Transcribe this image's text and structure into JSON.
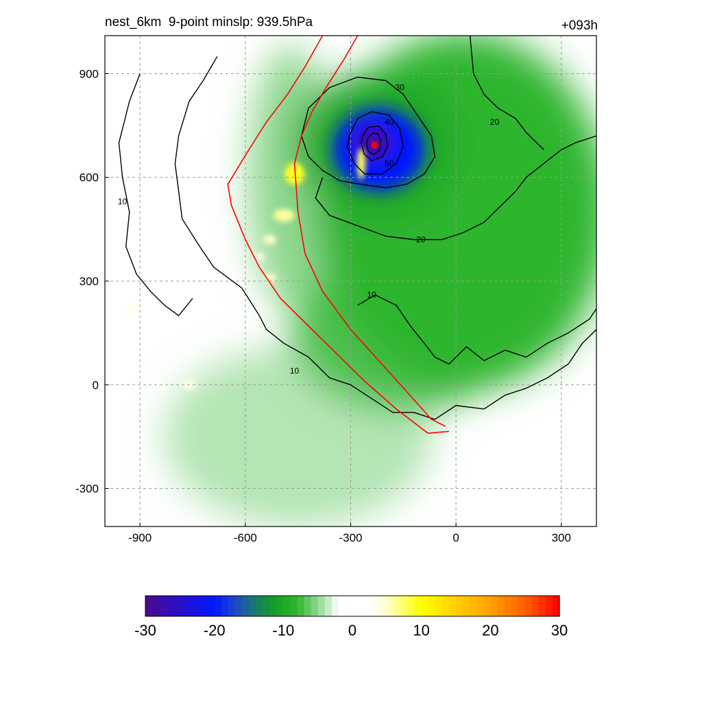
{
  "figure": {
    "title_left": "nest_6km  9-point minslp: 939.5hPa",
    "title_right": "+093h"
  },
  "chart_data": {
    "type": "heatmap",
    "title": "nest_6km  9-point minslp: 939.5hPa",
    "forecast_hour": "+093h",
    "xlim": [
      -1000,
      400
    ],
    "ylim": [
      -410,
      1010
    ],
    "x_ticks": [
      -900,
      -600,
      -300,
      0,
      300
    ],
    "y_ticks": [
      -300,
      0,
      300,
      600,
      900
    ],
    "grid": true,
    "colorbar": {
      "min": -30,
      "max": 30,
      "ticks": [
        -30,
        -20,
        -10,
        0,
        10,
        20,
        30
      ],
      "placement": "bottom",
      "stops": [
        {
          "v": -30,
          "c": "#4b0a8c"
        },
        {
          "v": -25,
          "c": "#2a10c8"
        },
        {
          "v": -20,
          "c": "#0018ff"
        },
        {
          "v": -17,
          "c": "#1f48c8"
        },
        {
          "v": -14,
          "c": "#1a7a6a"
        },
        {
          "v": -11,
          "c": "#15a020"
        },
        {
          "v": -8,
          "c": "#2fb52f"
        },
        {
          "v": -5,
          "c": "#8fd88f"
        },
        {
          "v": -3,
          "c": "#d8f2d8"
        },
        {
          "v": -2,
          "c": "#ffffff"
        },
        {
          "v": 3,
          "c": "#ffffff"
        },
        {
          "v": 5,
          "c": "#ffffc8"
        },
        {
          "v": 10,
          "c": "#ffff00"
        },
        {
          "v": 15,
          "c": "#ffd000"
        },
        {
          "v": 20,
          "c": "#ffa000"
        },
        {
          "v": 25,
          "c": "#ff6000"
        },
        {
          "v": 30,
          "c": "#ff0000"
        }
      ]
    },
    "storm_center": {
      "x": -232,
      "y": 693,
      "color": "#ff0000"
    },
    "field_features": [
      {
        "name": "eyewall",
        "x": -232,
        "y": 693,
        "rx": 230,
        "ry": 210,
        "value": -10
      },
      {
        "name": "inner-core",
        "x": -220,
        "y": 680,
        "rx": 130,
        "ry": 120,
        "value": -20
      },
      {
        "name": "eye-max",
        "x": -235,
        "y": 700,
        "rx": 50,
        "ry": 45,
        "value": -29
      },
      {
        "name": "east-band",
        "x": 20,
        "y": 500,
        "rx": 420,
        "ry": 520,
        "value": -8
      },
      {
        "name": "south-band",
        "x": -150,
        "y": 150,
        "rx": 320,
        "ry": 230,
        "value": -7
      },
      {
        "name": "southwest-sheet",
        "x": -450,
        "y": -150,
        "rx": 380,
        "ry": 260,
        "value": -4
      },
      {
        "name": "west-band",
        "x": -470,
        "y": 600,
        "rx": 120,
        "ry": 380,
        "value": -5
      }
    ],
    "positive_patches": [
      {
        "x": -460,
        "y": 610,
        "rx": 28,
        "ry": 32,
        "value": 9
      },
      {
        "x": -490,
        "y": 490,
        "rx": 30,
        "ry": 18,
        "value": 6
      },
      {
        "x": -530,
        "y": 420,
        "rx": 18,
        "ry": 14,
        "value": 5
      },
      {
        "x": -530,
        "y": 310,
        "rx": 18,
        "ry": 12,
        "value": 5
      },
      {
        "x": -270,
        "y": 640,
        "rx": 12,
        "ry": 45,
        "value": 8
      },
      {
        "x": -920,
        "y": 220,
        "rx": 18,
        "ry": 12,
        "value": 4
      },
      {
        "x": -560,
        "y": 370,
        "rx": 14,
        "ry": 10,
        "value": 4
      },
      {
        "x": -760,
        "y": 0,
        "rx": 20,
        "ry": 14,
        "value": 4
      }
    ],
    "contours": [
      {
        "level": "10",
        "color": "#000000",
        "points": [
          [
            -680,
            950
          ],
          [
            -720,
            880
          ],
          [
            -760,
            820
          ],
          [
            -790,
            720
          ],
          [
            -800,
            640
          ],
          [
            -790,
            560
          ],
          [
            -780,
            480
          ],
          [
            -730,
            400
          ],
          [
            -690,
            340
          ],
          [
            -610,
            280
          ],
          [
            -560,
            200
          ],
          [
            -540,
            160
          ],
          [
            -490,
            120
          ],
          [
            -420,
            80
          ],
          [
            -360,
            20
          ],
          [
            -300,
            0
          ],
          [
            -240,
            -40
          ],
          [
            -180,
            -80
          ],
          [
            -120,
            -80
          ],
          [
            -60,
            -100
          ],
          [
            0,
            -60
          ],
          [
            80,
            -70
          ],
          [
            140,
            -30
          ],
          [
            200,
            -10
          ],
          [
            260,
            20
          ],
          [
            320,
            60
          ],
          [
            360,
            120
          ],
          [
            400,
            160
          ]
        ],
        "label": {
          "text": "10",
          "x": -460,
          "y": 40
        }
      },
      {
        "level": "10",
        "color": "#000000",
        "points": [
          [
            -900,
            900
          ],
          [
            -930,
            820
          ],
          [
            -960,
            700
          ],
          [
            -950,
            600
          ],
          [
            -930,
            500
          ],
          [
            -940,
            400
          ],
          [
            -910,
            320
          ],
          [
            -870,
            270
          ],
          [
            -830,
            230
          ],
          [
            -790,
            200
          ],
          [
            -750,
            250
          ]
        ],
        "label": {
          "text": "10",
          "x": -950,
          "y": 530
        }
      },
      {
        "level": "10",
        "color": "#000000",
        "points": [
          [
            -280,
            230
          ],
          [
            -230,
            260
          ],
          [
            -170,
            230
          ],
          [
            -130,
            170
          ],
          [
            -90,
            120
          ],
          [
            -60,
            80
          ],
          [
            -20,
            60
          ],
          [
            30,
            110
          ],
          [
            80,
            70
          ],
          [
            140,
            100
          ],
          [
            200,
            80
          ],
          [
            260,
            120
          ],
          [
            320,
            150
          ],
          [
            380,
            190
          ],
          [
            400,
            220
          ]
        ],
        "label": {
          "text": "10",
          "x": -240,
          "y": 260
        }
      },
      {
        "level": "20",
        "color": "#000000",
        "points": [
          [
            -380,
            600
          ],
          [
            -400,
            540
          ],
          [
            -360,
            490
          ],
          [
            -280,
            460
          ],
          [
            -200,
            430
          ],
          [
            -120,
            420
          ],
          [
            -40,
            420
          ],
          [
            20,
            440
          ],
          [
            80,
            470
          ],
          [
            130,
            520
          ],
          [
            170,
            560
          ],
          [
            200,
            600
          ],
          [
            250,
            640
          ],
          [
            300,
            680
          ],
          [
            340,
            700
          ],
          [
            400,
            720
          ]
        ],
        "label": {
          "text": "20",
          "x": -100,
          "y": 420
        }
      },
      {
        "level": "20",
        "color": "#000000",
        "points": [
          [
            40,
            1010
          ],
          [
            50,
            900
          ],
          [
            80,
            840
          ],
          [
            120,
            800
          ],
          [
            170,
            770
          ],
          [
            200,
            730
          ],
          [
            230,
            700
          ],
          [
            250,
            680
          ]
        ],
        "label": {
          "text": "20",
          "x": 110,
          "y": 760
        }
      },
      {
        "level": "30",
        "color": "#000000",
        "points": [
          [
            -440,
            720
          ],
          [
            -420,
            800
          ],
          [
            -360,
            860
          ],
          [
            -280,
            890
          ],
          [
            -200,
            880
          ],
          [
            -150,
            840
          ],
          [
            -110,
            780
          ],
          [
            -70,
            720
          ],
          [
            -60,
            660
          ],
          [
            -90,
            610
          ],
          [
            -140,
            580
          ],
          [
            -200,
            570
          ],
          [
            -270,
            580
          ],
          [
            -330,
            590
          ],
          [
            -380,
            620
          ],
          [
            -420,
            660
          ],
          [
            -440,
            720
          ]
        ],
        "label": {
          "text": "30",
          "x": -160,
          "y": 860
        }
      },
      {
        "level": "40",
        "color": "#000000",
        "points": [
          [
            -300,
            730
          ],
          [
            -280,
            770
          ],
          [
            -240,
            790
          ],
          [
            -190,
            780
          ],
          [
            -160,
            740
          ],
          [
            -150,
            690
          ],
          [
            -170,
            640
          ],
          [
            -210,
            610
          ],
          [
            -260,
            610
          ],
          [
            -290,
            640
          ],
          [
            -310,
            690
          ],
          [
            -300,
            730
          ]
        ],
        "label": {
          "text": "40",
          "x": -190,
          "y": 760
        }
      },
      {
        "level": "50",
        "color": "#000000",
        "points": [
          [
            -265,
            720
          ],
          [
            -250,
            745
          ],
          [
            -220,
            748
          ],
          [
            -200,
            725
          ],
          [
            -195,
            690
          ],
          [
            -210,
            660
          ],
          [
            -240,
            648
          ],
          [
            -262,
            668
          ],
          [
            -270,
            700
          ],
          [
            -265,
            720
          ]
        ],
        "label": {
          "text": "50",
          "x": -190,
          "y": 640
        }
      },
      {
        "level": "60",
        "color": "#000000",
        "points": [
          [
            -250,
            715
          ],
          [
            -238,
            728
          ],
          [
            -222,
            726
          ],
          [
            -214,
            705
          ],
          [
            -218,
            678
          ],
          [
            -235,
            666
          ],
          [
            -250,
            676
          ],
          [
            -255,
            698
          ],
          [
            -250,
            715
          ]
        ],
        "label": {
          "text": "",
          "x": 0,
          "y": 0
        }
      }
    ],
    "red_lines": [
      {
        "points": [
          [
            -380,
            1010
          ],
          [
            -430,
            920
          ],
          [
            -480,
            840
          ],
          [
            -540,
            760
          ],
          [
            -590,
            680
          ],
          [
            -650,
            580
          ],
          [
            -640,
            520
          ],
          [
            -600,
            420
          ],
          [
            -560,
            340
          ],
          [
            -500,
            250
          ],
          [
            -420,
            170
          ],
          [
            -340,
            90
          ],
          [
            -260,
            10
          ],
          [
            -170,
            -70
          ],
          [
            -80,
            -140
          ],
          [
            -20,
            -135
          ]
        ]
      },
      {
        "points": [
          [
            -280,
            1010
          ],
          [
            -320,
            940
          ],
          [
            -370,
            860
          ],
          [
            -410,
            790
          ],
          [
            -440,
            720
          ],
          [
            -460,
            640
          ],
          [
            -450,
            500
          ],
          [
            -430,
            380
          ],
          [
            -380,
            270
          ],
          [
            -300,
            160
          ],
          [
            -220,
            70
          ],
          [
            -140,
            -20
          ],
          [
            -70,
            -100
          ],
          [
            -30,
            -120
          ]
        ]
      }
    ]
  }
}
